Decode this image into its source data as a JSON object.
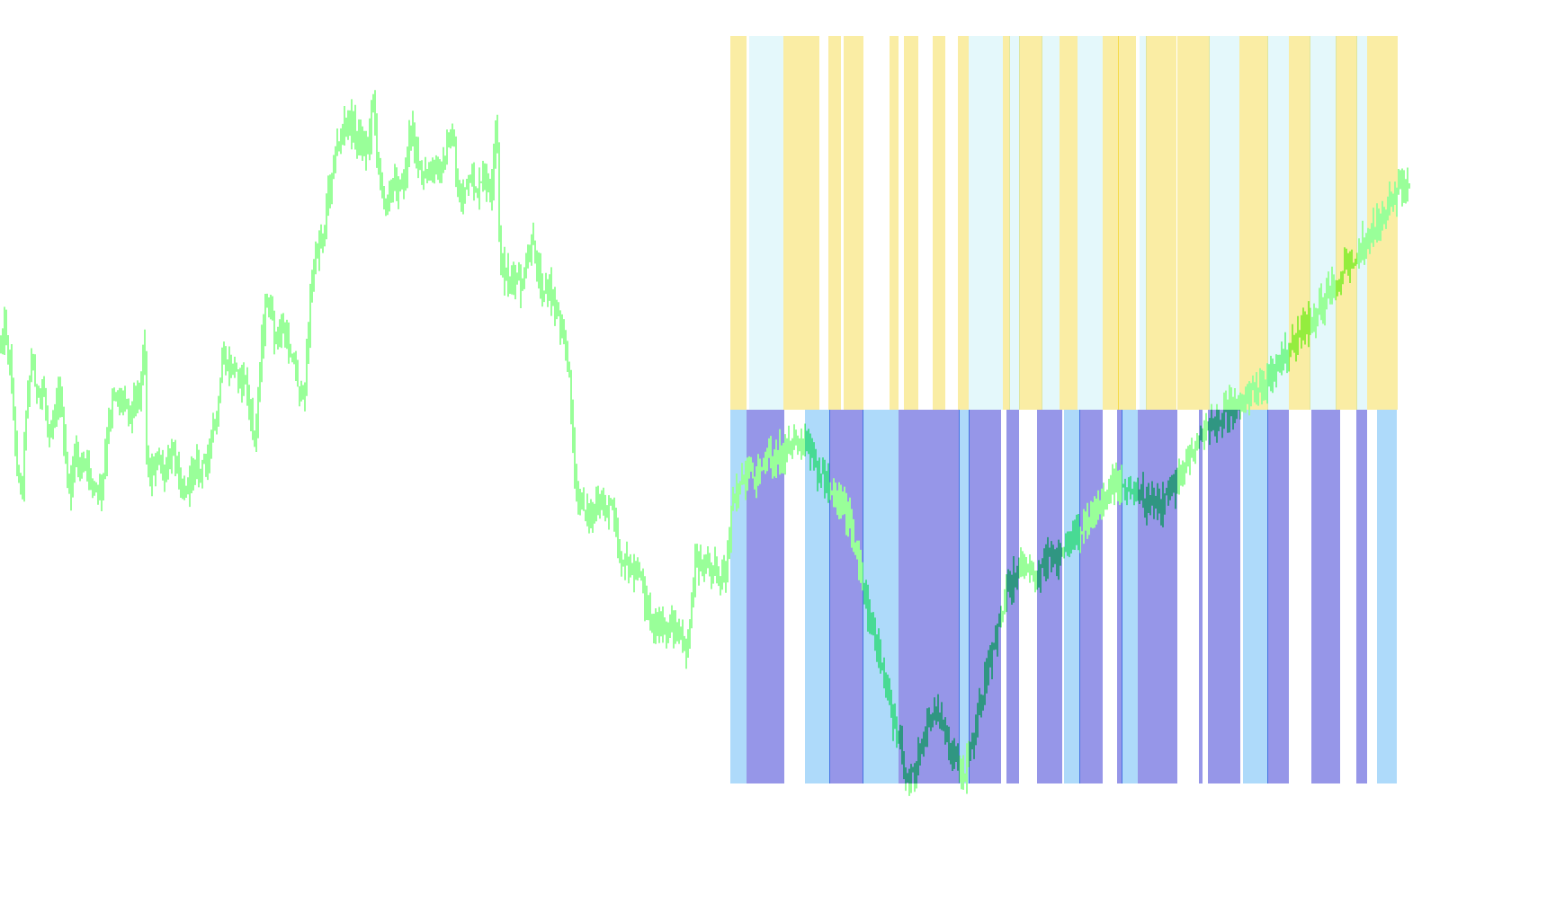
{
  "chart_data": {
    "type": "bar",
    "title": "",
    "xlabel": "",
    "ylabel": "",
    "grid": false,
    "legend": "none",
    "price_series": {
      "color": "#33ff33",
      "bar_count": 390,
      "close_path": [
        [
          0,
          0.4
        ],
        [
          6,
          0.38
        ],
        [
          12,
          0.44
        ],
        [
          18,
          0.55
        ],
        [
          24,
          0.6
        ],
        [
          30,
          0.47
        ],
        [
          36,
          0.42
        ],
        [
          42,
          0.48
        ],
        [
          48,
          0.46
        ],
        [
          54,
          0.52
        ],
        [
          60,
          0.5
        ],
        [
          66,
          0.46
        ],
        [
          72,
          0.55
        ],
        [
          78,
          0.6
        ],
        [
          84,
          0.54
        ],
        [
          90,
          0.57
        ],
        [
          96,
          0.56
        ],
        [
          102,
          0.58
        ],
        [
          108,
          0.6
        ],
        [
          114,
          0.59
        ],
        [
          120,
          0.52
        ],
        [
          126,
          0.46
        ],
        [
          132,
          0.48
        ],
        [
          138,
          0.47
        ],
        [
          144,
          0.49
        ],
        [
          150,
          0.48
        ],
        [
          156,
          0.46
        ],
        [
          160,
          0.38
        ],
        [
          164,
          0.58
        ],
        [
          170,
          0.57
        ],
        [
          176,
          0.55
        ],
        [
          182,
          0.58
        ],
        [
          188,
          0.56
        ],
        [
          194,
          0.54
        ],
        [
          200,
          0.58
        ],
        [
          206,
          0.6
        ],
        [
          212,
          0.57
        ],
        [
          218,
          0.56
        ],
        [
          224,
          0.57
        ],
        [
          230,
          0.55
        ],
        [
          236,
          0.52
        ],
        [
          242,
          0.5
        ],
        [
          248,
          0.42
        ],
        [
          254,
          0.44
        ],
        [
          260,
          0.43
        ],
        [
          266,
          0.45
        ],
        [
          272,
          0.44
        ],
        [
          278,
          0.5
        ],
        [
          284,
          0.53
        ],
        [
          290,
          0.41
        ],
        [
          296,
          0.35
        ],
        [
          302,
          0.37
        ],
        [
          308,
          0.4
        ],
        [
          314,
          0.38
        ],
        [
          320,
          0.41
        ],
        [
          326,
          0.42
        ],
        [
          332,
          0.46
        ],
        [
          338,
          0.48
        ],
        [
          344,
          0.36
        ],
        [
          350,
          0.29
        ],
        [
          356,
          0.27
        ],
        [
          362,
          0.24
        ],
        [
          368,
          0.18
        ],
        [
          374,
          0.15
        ],
        [
          380,
          0.13
        ],
        [
          386,
          0.11
        ],
        [
          392,
          0.12
        ],
        [
          398,
          0.13
        ],
        [
          404,
          0.15
        ],
        [
          410,
          0.14
        ],
        [
          414,
          0.07
        ],
        [
          420,
          0.16
        ],
        [
          426,
          0.22
        ],
        [
          432,
          0.2
        ],
        [
          438,
          0.2
        ],
        [
          444,
          0.19
        ],
        [
          450,
          0.19
        ],
        [
          456,
          0.12
        ],
        [
          462,
          0.14
        ],
        [
          468,
          0.18
        ],
        [
          474,
          0.19
        ],
        [
          480,
          0.18
        ],
        [
          486,
          0.17
        ],
        [
          492,
          0.17
        ],
        [
          498,
          0.15
        ],
        [
          504,
          0.13
        ],
        [
          510,
          0.22
        ],
        [
          516,
          0.2
        ],
        [
          522,
          0.19
        ],
        [
          528,
          0.2
        ],
        [
          534,
          0.2
        ],
        [
          540,
          0.18
        ],
        [
          546,
          0.22
        ],
        [
          552,
          0.1
        ],
        [
          556,
          0.3
        ],
        [
          562,
          0.31
        ],
        [
          568,
          0.32
        ],
        [
          574,
          0.32
        ],
        [
          580,
          0.33
        ],
        [
          586,
          0.3
        ],
        [
          592,
          0.27
        ],
        [
          598,
          0.31
        ],
        [
          604,
          0.33
        ],
        [
          610,
          0.33
        ],
        [
          616,
          0.35
        ],
        [
          622,
          0.37
        ],
        [
          628,
          0.4
        ],
        [
          634,
          0.46
        ],
        [
          640,
          0.6
        ],
        [
          646,
          0.61
        ],
        [
          652,
          0.62
        ],
        [
          658,
          0.63
        ],
        [
          664,
          0.62
        ],
        [
          670,
          0.61
        ],
        [
          676,
          0.62
        ],
        [
          682,
          0.61
        ],
        [
          688,
          0.68
        ],
        [
          694,
          0.69
        ],
        [
          700,
          0.7
        ],
        [
          706,
          0.71
        ],
        [
          712,
          0.7
        ],
        [
          718,
          0.74
        ],
        [
          724,
          0.77
        ],
        [
          730,
          0.78
        ],
        [
          736,
          0.77
        ],
        [
          742,
          0.78
        ],
        [
          748,
          0.77
        ],
        [
          754,
          0.79
        ],
        [
          760,
          0.8
        ],
        [
          766,
          0.79
        ],
        [
          772,
          0.69
        ],
        [
          778,
          0.69
        ],
        [
          784,
          0.69
        ],
        [
          790,
          0.7
        ],
        [
          796,
          0.69
        ],
        [
          802,
          0.71
        ],
        [
          808,
          0.7
        ],
        [
          814,
          0.6
        ],
        [
          860,
          0.55
        ],
        [
          888,
          0.53
        ],
        [
          940,
          0.62
        ],
        [
          1010,
          0.98
        ],
        [
          1040,
          0.88
        ],
        [
          1072,
          0.97
        ],
        [
          1120,
          0.72
        ],
        [
          1140,
          0.69
        ],
        [
          1150,
          0.7
        ],
        [
          1180,
          0.68
        ],
        [
          1230,
          0.6
        ],
        [
          1240,
          0.58
        ],
        [
          1290,
          0.62
        ],
        [
          1336,
          0.52
        ],
        [
          1410,
          0.45
        ],
        [
          1440,
          0.4
        ],
        [
          1500,
          0.3
        ],
        [
          1550,
          0.21
        ],
        [
          1568,
          0.2
        ]
      ]
    },
    "overlay": {
      "x_range": [
        813,
        1554
      ],
      "upper_colors": {
        "gold": "#f5db4a",
        "lightcyan": "#c9f2f7",
        "none": "#ffffff"
      },
      "lower_colors": {
        "navy": "#2e2ed1",
        "skyblue": "#5cb5f5",
        "none": "#ffffff"
      },
      "upper_segments": [
        [
          "gold",
          813,
          829
        ],
        [
          "lightcyan",
          834,
          871
        ],
        [
          "gold",
          872,
          911
        ],
        [
          "gold",
          922,
          934
        ],
        [
          "gold",
          939,
          959
        ],
        [
          "gold",
          990,
          999
        ],
        [
          "gold",
          1006,
          1021
        ],
        [
          "gold",
          1038,
          1050
        ],
        [
          "gold",
          1066,
          1077
        ],
        [
          "lightcyan",
          1078,
          1115
        ],
        [
          "gold",
          1116,
          1122
        ],
        [
          "lightcyan",
          1123,
          1133
        ],
        [
          "gold",
          1134,
          1158
        ],
        [
          "lightcyan",
          1159,
          1178
        ],
        [
          "gold",
          1179,
          1198
        ],
        [
          "lightcyan",
          1199,
          1226
        ],
        [
          "gold",
          1227,
          1243
        ],
        [
          "gold",
          1244,
          1263
        ],
        [
          "lightcyan",
          1268,
          1274
        ],
        [
          "gold",
          1275,
          1307
        ],
        [
          "gold",
          1310,
          1344
        ],
        [
          "lightcyan",
          1345,
          1378
        ],
        [
          "gold",
          1379,
          1409
        ],
        [
          "lightcyan",
          1410,
          1433
        ],
        [
          "gold",
          1434,
          1456
        ],
        [
          "lightcyan",
          1457,
          1485
        ],
        [
          "gold",
          1486,
          1508
        ],
        [
          "lightcyan",
          1509,
          1520
        ],
        [
          "gold",
          1521,
          1553
        ]
      ],
      "lower_segments": [
        [
          "skyblue",
          813,
          830
        ],
        [
          "navy",
          831,
          872
        ],
        [
          "skyblue",
          896,
          922
        ],
        [
          "navy",
          923,
          959
        ],
        [
          "skyblue",
          960,
          999
        ],
        [
          "navy",
          1000,
          1066
        ],
        [
          "skyblue",
          1067,
          1077
        ],
        [
          "navy",
          1078,
          1113
        ],
        [
          "navy",
          1120,
          1133
        ],
        [
          "navy",
          1154,
          1181
        ],
        [
          "skyblue",
          1184,
          1200
        ],
        [
          "navy",
          1201,
          1225
        ],
        [
          "navy",
          1243,
          1247
        ],
        [
          "skyblue",
          1248,
          1265
        ],
        [
          "navy",
          1266,
          1309
        ],
        [
          "navy",
          1334,
          1336
        ],
        [
          "navy",
          1344,
          1353
        ],
        [
          "navy",
          1354,
          1379
        ],
        [
          "skyblue",
          1383,
          1409
        ],
        [
          "navy",
          1410,
          1433
        ],
        [
          "navy",
          1459,
          1485
        ],
        [
          "navy",
          1487,
          1489
        ],
        [
          "navy",
          1509,
          1520
        ],
        [
          "skyblue",
          1532,
          1553
        ]
      ]
    }
  }
}
